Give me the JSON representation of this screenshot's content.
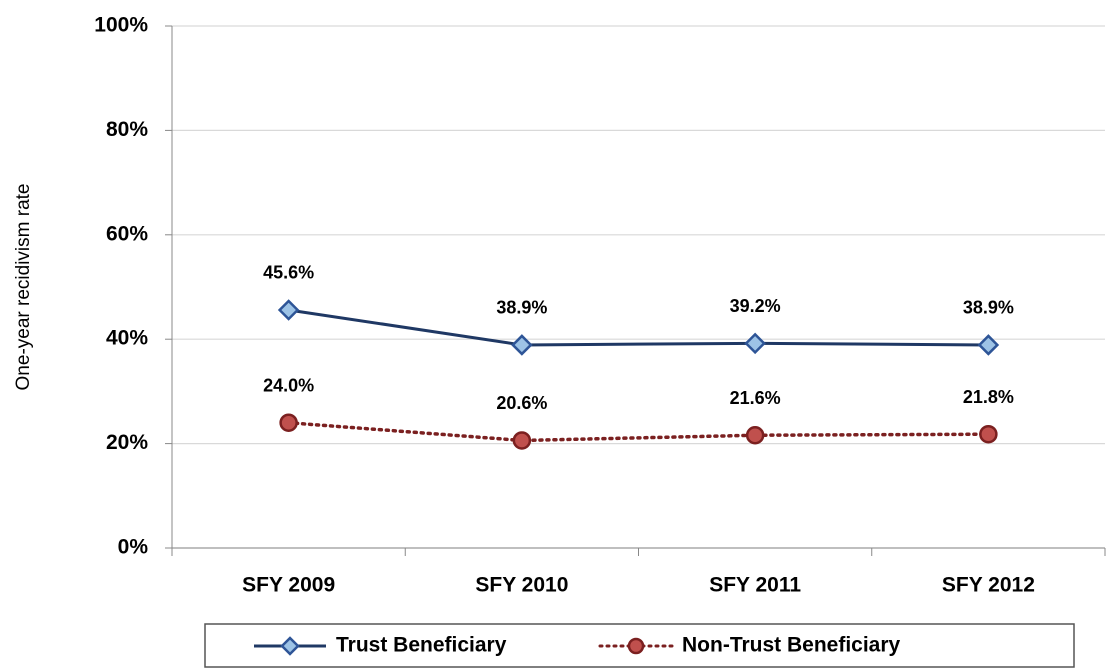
{
  "chart_data": {
    "type": "line",
    "y_label": "One-year recidivism rate",
    "categories": [
      "SFY 2009",
      "SFY 2010",
      "SFY 2011",
      "SFY 2012"
    ],
    "series": [
      {
        "name": "Trust Beneficiary",
        "color": "#1f3864",
        "marker": "diamond",
        "marker_fill": "#9dc3e6",
        "marker_stroke": "#2e5597",
        "line_style": "solid",
        "values": [
          45.6,
          38.9,
          39.2,
          38.9
        ],
        "value_labels": [
          "45.6%",
          "38.9%",
          "39.2%",
          "38.9%"
        ]
      },
      {
        "name": "Non-Trust Beneficiary",
        "color": "#7b2020",
        "marker": "circle",
        "marker_fill": "#c0504d",
        "marker_stroke": "#7b2020",
        "line_style": "dotted",
        "values": [
          24.0,
          20.6,
          21.6,
          21.8
        ],
        "value_labels": [
          "24.0%",
          "20.6%",
          "21.6%",
          "21.8%"
        ]
      }
    ],
    "ylim": [
      0,
      100
    ],
    "yticks": [
      {
        "value": 0,
        "label": "0%"
      },
      {
        "value": 20,
        "label": "20%"
      },
      {
        "value": 40,
        "label": "40%"
      },
      {
        "value": 60,
        "label": "60%"
      },
      {
        "value": 80,
        "label": "80%"
      },
      {
        "value": 100,
        "label": "100%"
      }
    ],
    "grid": true,
    "legend": "bottom"
  }
}
